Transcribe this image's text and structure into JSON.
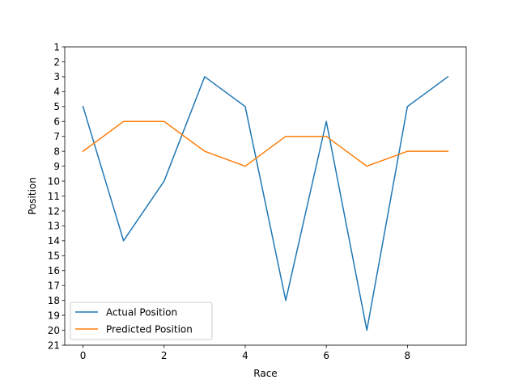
{
  "chart_data": {
    "type": "line",
    "title": "",
    "xlabel": "Race",
    "ylabel": "Position",
    "x": [
      0,
      1,
      2,
      3,
      4,
      5,
      6,
      7,
      8,
      9
    ],
    "series": [
      {
        "name": "Actual Position",
        "values": [
          5,
          14,
          10,
          3,
          5,
          18,
          6,
          20,
          5,
          3
        ],
        "color": "#1f77b4"
      },
      {
        "name": "Predicted Position",
        "values": [
          8,
          6,
          6,
          8,
          9,
          7,
          7,
          9,
          8,
          8
        ],
        "color": "#ff7f0e"
      }
    ],
    "xlim": [
      -0.45,
      9.45
    ],
    "ylim": [
      21,
      1
    ],
    "y_inverted": true,
    "xticks": [
      0,
      2,
      4,
      6,
      8
    ],
    "yticks": [
      1,
      2,
      3,
      4,
      5,
      6,
      7,
      8,
      9,
      10,
      11,
      12,
      13,
      14,
      15,
      16,
      17,
      18,
      19,
      20,
      21
    ],
    "grid": false,
    "legend_position": "lower-left"
  }
}
